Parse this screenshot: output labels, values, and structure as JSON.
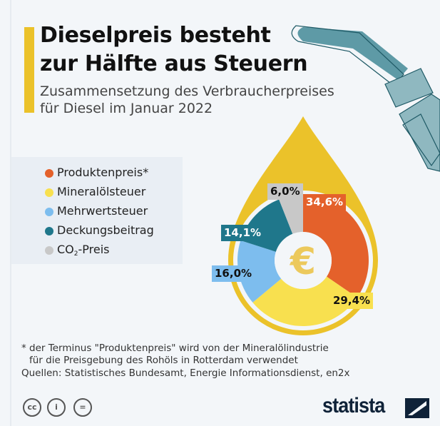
{
  "header": {
    "title_line1": "Dieselpreis besteht",
    "title_line2": "zur Hälfte aus Steuern",
    "subtitle_line1": "Zusammensetzung des Verbraucherpreises",
    "subtitle_line2": "für Diesel im Januar 2022",
    "accent_color": "#ebc22a"
  },
  "chart_data": {
    "type": "pie",
    "variant": "donut",
    "title": "Dieselpreis besteht zur Hälfte aus Steuern",
    "subtitle": "Zusammensetzung des Verbraucherpreises für Diesel im Januar 2022",
    "center_icon": "euro-icon",
    "legend_position": "left",
    "slices": [
      {
        "name": "Produktenpreis*",
        "value": 34.6,
        "label": "34,6%",
        "color": "#e4612b"
      },
      {
        "name": "Mineralölsteuer",
        "value": 29.4,
        "label": "29,4%",
        "color": "#f8e04f"
      },
      {
        "name": "Mehrwertsteuer",
        "value": 16.0,
        "label": "16,0%",
        "color": "#7dbdee"
      },
      {
        "name": "Deckungsbeitrag",
        "value": 14.1,
        "label": "14,1%",
        "color": "#1f778b"
      },
      {
        "name": "CO2-Preis",
        "value": 6.0,
        "label": "6,0%",
        "color": "#c8c8c8"
      }
    ]
  },
  "legend": {
    "items": [
      {
        "label": "Produktenpreis*"
      },
      {
        "label": "Mineralölsteuer"
      },
      {
        "label": "Mehrwertsteuer"
      },
      {
        "label": "Deckungsbeitrag"
      },
      {
        "label_main": "CO",
        "label_sub": "2",
        "label_rest": "-Preis"
      }
    ]
  },
  "footer": {
    "note_line1": "* der Terminus \"Produktenpreis\" wird von der Mineralölindustrie",
    "note_line2": "für die Preisgebung des Rohöls in Rotterdam verwendet",
    "sources": "Quellen: Statistisches Bundesamt, Energie Informationsdienst, en2x",
    "license_icons": [
      "cc-icon",
      "by-icon",
      "nd-icon"
    ],
    "brand": "statista"
  }
}
